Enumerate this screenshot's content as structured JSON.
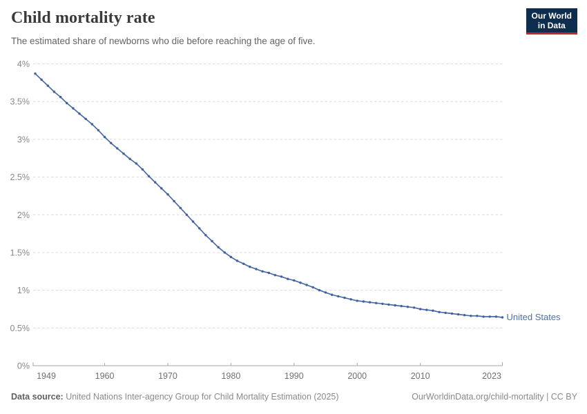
{
  "header": {
    "title": "Child mortality rate",
    "subtitle": "The estimated share of newborns who die before reaching the age of five."
  },
  "logo": {
    "line1": "Our World",
    "line2": "in Data"
  },
  "chart_data": {
    "type": "line",
    "title": "Child mortality rate",
    "entity": "United States",
    "unit": "%",
    "grid": "horizontal dashed",
    "legend_position": "end-of-line label",
    "ylim": [
      0,
      4
    ],
    "yticks": [
      0,
      0.5,
      1,
      1.5,
      2,
      2.5,
      3,
      3.5,
      4
    ],
    "ytick_labels": [
      "0%",
      "0.5%",
      "1%",
      "1.5%",
      "2%",
      "2.5%",
      "3%",
      "3.5%",
      "4%"
    ],
    "xticks": [
      1949,
      1960,
      1970,
      1980,
      1990,
      2000,
      2010,
      2023
    ],
    "x": [
      1949,
      1950,
      1951,
      1952,
      1953,
      1954,
      1955,
      1956,
      1957,
      1958,
      1959,
      1960,
      1961,
      1962,
      1963,
      1964,
      1965,
      1966,
      1967,
      1968,
      1969,
      1970,
      1971,
      1972,
      1973,
      1974,
      1975,
      1976,
      1977,
      1978,
      1979,
      1980,
      1981,
      1982,
      1983,
      1984,
      1985,
      1986,
      1987,
      1988,
      1989,
      1990,
      1991,
      1992,
      1993,
      1994,
      1995,
      1996,
      1997,
      1998,
      1999,
      2000,
      2001,
      2002,
      2003,
      2004,
      2005,
      2006,
      2007,
      2008,
      2009,
      2010,
      2011,
      2012,
      2013,
      2014,
      2015,
      2016,
      2017,
      2018,
      2019,
      2020,
      2021,
      2022,
      2023
    ],
    "values": [
      3.87,
      3.79,
      3.71,
      3.63,
      3.56,
      3.48,
      3.41,
      3.34,
      3.27,
      3.2,
      3.12,
      3.03,
      2.95,
      2.88,
      2.81,
      2.74,
      2.68,
      2.6,
      2.51,
      2.43,
      2.35,
      2.27,
      2.18,
      2.09,
      2.0,
      1.91,
      1.82,
      1.73,
      1.65,
      1.57,
      1.5,
      1.44,
      1.39,
      1.35,
      1.31,
      1.28,
      1.25,
      1.23,
      1.2,
      1.18,
      1.15,
      1.13,
      1.1,
      1.07,
      1.04,
      1.0,
      0.97,
      0.94,
      0.92,
      0.9,
      0.88,
      0.86,
      0.85,
      0.84,
      0.83,
      0.82,
      0.81,
      0.8,
      0.79,
      0.78,
      0.77,
      0.75,
      0.74,
      0.73,
      0.71,
      0.7,
      0.69,
      0.68,
      0.67,
      0.66,
      0.66,
      0.65,
      0.65,
      0.65,
      0.64
    ]
  },
  "footer": {
    "datasource_label": "Data source:",
    "datasource_text": " United Nations Inter-agency Group for Child Mortality Estimation (2025)",
    "link": "OurWorldinData.org/child-mortality | CC BY"
  },
  "colors": {
    "series_line": "#4a6aa6",
    "series_dot": "#40609f",
    "series_label": "#4c6fae",
    "logo_navy": "#0f2e4f",
    "logo_red": "#c4262e",
    "grid": "#dcdcdc",
    "axis": "#a6a6a6"
  }
}
